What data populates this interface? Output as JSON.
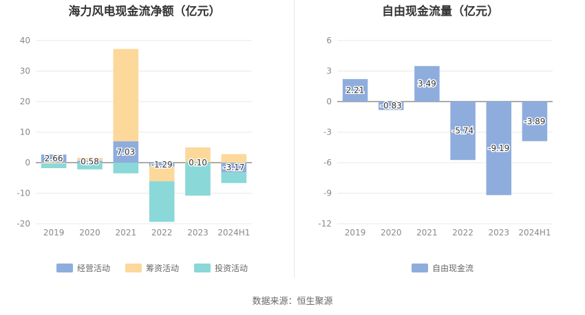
{
  "left_title": "海力风电现金流净额（亿元）",
  "right_title": "自由现金流量（亿元）",
  "footer": "数据来源：恒生聚源",
  "colors": {
    "operating": "#8eaddd",
    "financing": "#fdd89b",
    "investing": "#8ad8d8",
    "free_cash_flow": "#8eaddd"
  },
  "chart_data": [
    {
      "type": "bar",
      "stacked": true,
      "title": "海力风电现金流净额（亿元）",
      "categories": [
        "2019",
        "2020",
        "2021",
        "2022",
        "2023",
        "2024H1"
      ],
      "ylim": [
        -20,
        40
      ],
      "yticks": [
        40,
        30,
        20,
        10,
        0,
        -10,
        -20
      ],
      "grid": true,
      "legend_position": "bottom",
      "series": [
        {
          "name": "经营活动",
          "values": [
            2.66,
            0.58,
            7.03,
            -1.29,
            0.1,
            -3.17
          ],
          "labeled": true
        },
        {
          "name": "筹资活动",
          "values": [
            -0.3,
            1.0,
            30.2,
            -4.8,
            4.9,
            2.8
          ],
          "labeled": false
        },
        {
          "name": "投资活动",
          "values": [
            -1.5,
            -2.2,
            -3.5,
            -13.3,
            -10.8,
            -3.5
          ],
          "labeled": false
        }
      ]
    },
    {
      "type": "bar",
      "title": "自由现金流量（亿元）",
      "categories": [
        "2019",
        "2020",
        "2021",
        "2022",
        "2023",
        "2024H1"
      ],
      "ylim": [
        -12,
        6
      ],
      "yticks": [
        6,
        3,
        0,
        -3,
        -6,
        -9,
        -12
      ],
      "grid": true,
      "legend_position": "bottom",
      "series": [
        {
          "name": "自由现金流",
          "values": [
            2.21,
            -0.83,
            3.49,
            -5.74,
            -9.19,
            -3.89
          ],
          "labeled": true
        }
      ]
    }
  ]
}
